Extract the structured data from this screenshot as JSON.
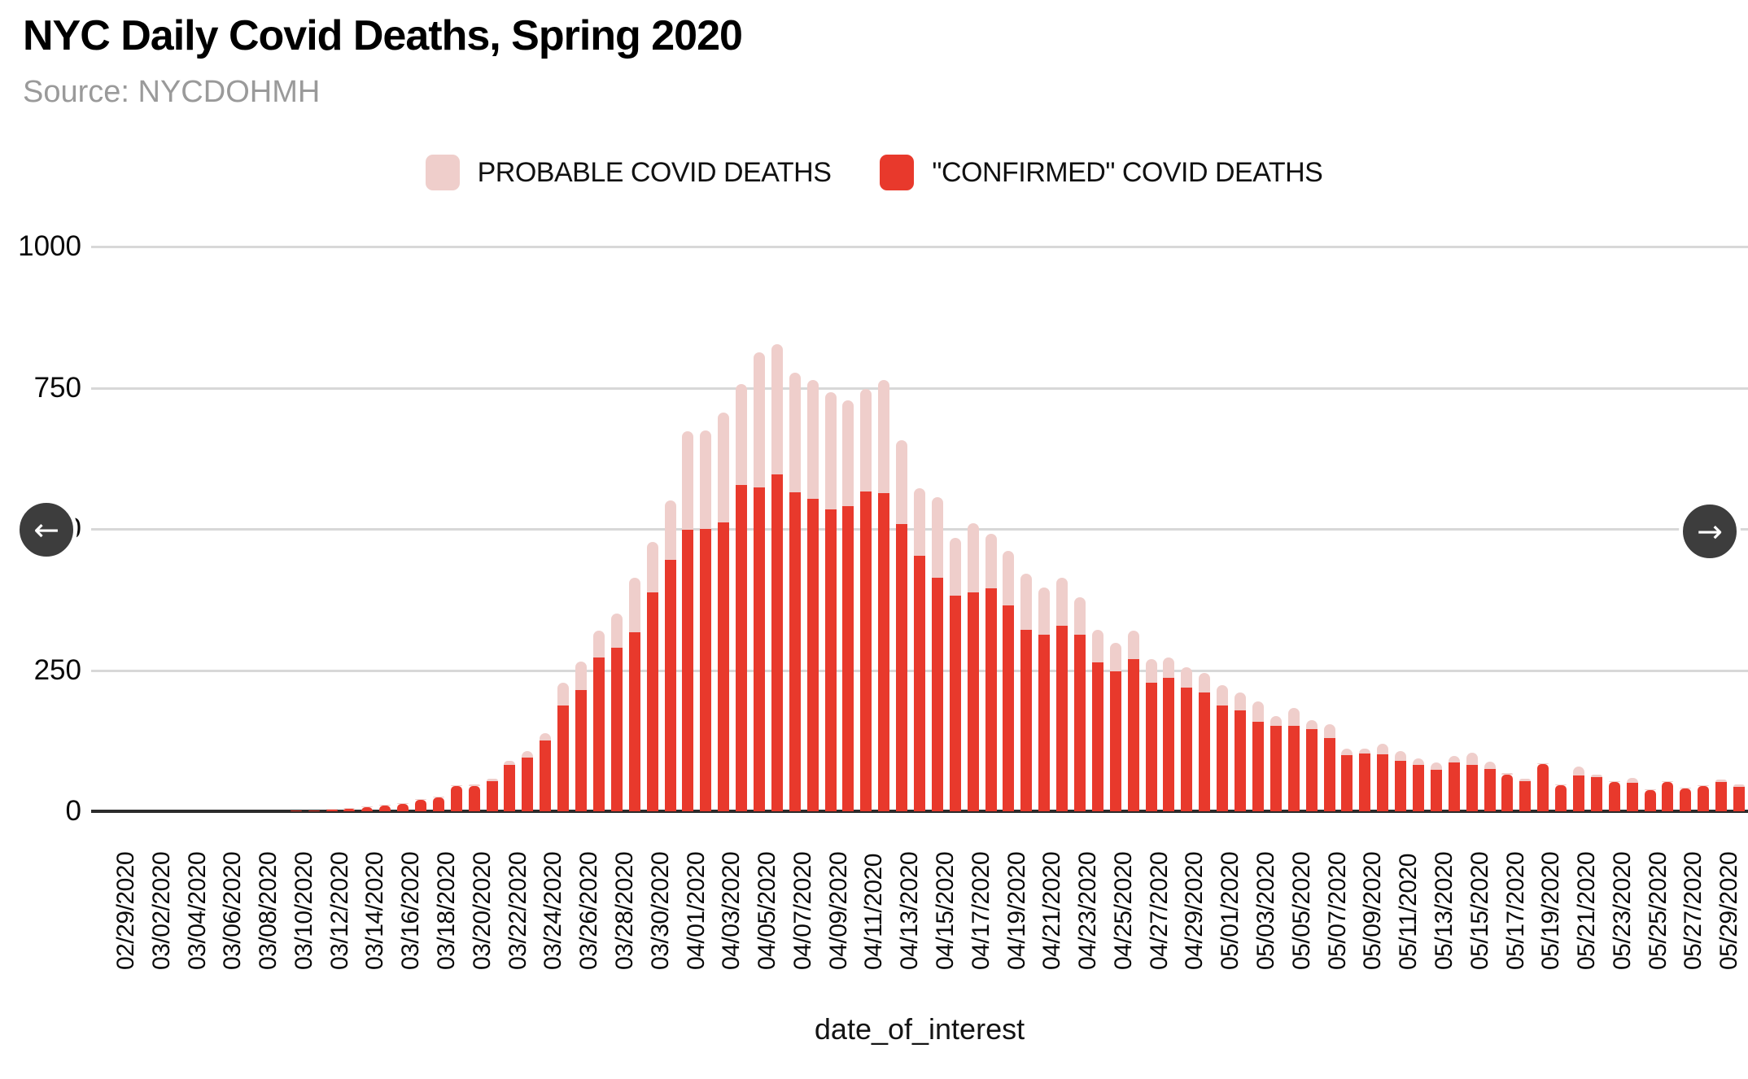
{
  "title": "NYC Daily Covid Deaths, Spring 2020",
  "source": "Source: NYCDOHMH",
  "xaxis_title": "date_of_interest",
  "nav": {
    "left_glyph": "←",
    "right_glyph": "→"
  },
  "colors": {
    "confirmed": "#e8392c",
    "probable": "#efcecb",
    "grid": "#d8d8d8",
    "axis": "#2b2b2b",
    "nav_button": "#3d3d3d"
  },
  "legend": [
    {
      "label": "PROBABLE COVID DEATHS",
      "color": "#efcecb"
    },
    {
      "label": "\"CONFIRMED\" COVID DEATHS",
      "color": "#e8392c"
    }
  ],
  "chart_data": {
    "type": "bar",
    "stacked": true,
    "title": "NYC Daily Covid Deaths, Spring 2020",
    "xlabel": "date_of_interest",
    "ylabel": "",
    "ylim": [
      0,
      1000
    ],
    "yticks": [
      0,
      250,
      500,
      750,
      1000
    ],
    "grid": true,
    "legend_position": "top",
    "tick_label_every": 2,
    "categories": [
      "02/29/2020",
      "03/01/2020",
      "03/02/2020",
      "03/03/2020",
      "03/04/2020",
      "03/05/2020",
      "03/06/2020",
      "03/07/2020",
      "03/08/2020",
      "03/09/2020",
      "03/10/2020",
      "03/11/2020",
      "03/12/2020",
      "03/13/2020",
      "03/14/2020",
      "03/15/2020",
      "03/16/2020",
      "03/17/2020",
      "03/18/2020",
      "03/19/2020",
      "03/20/2020",
      "03/21/2020",
      "03/22/2020",
      "03/23/2020",
      "03/24/2020",
      "03/25/2020",
      "03/26/2020",
      "03/27/2020",
      "03/28/2020",
      "03/29/2020",
      "03/30/2020",
      "03/31/2020",
      "04/01/2020",
      "04/02/2020",
      "04/03/2020",
      "04/04/2020",
      "04/05/2020",
      "04/06/2020",
      "04/07/2020",
      "04/08/2020",
      "04/09/2020",
      "04/10/2020",
      "04/11/2020",
      "04/12/2020",
      "04/13/2020",
      "04/14/2020",
      "04/15/2020",
      "04/16/2020",
      "04/17/2020",
      "04/18/2020",
      "04/19/2020",
      "04/20/2020",
      "04/21/2020",
      "04/22/2020",
      "04/23/2020",
      "04/24/2020",
      "04/25/2020",
      "04/26/2020",
      "04/27/2020",
      "04/28/2020",
      "04/29/2020",
      "04/30/2020",
      "05/01/2020",
      "05/02/2020",
      "05/03/2020",
      "05/04/2020",
      "05/05/2020",
      "05/06/2020",
      "05/07/2020",
      "05/08/2020",
      "05/09/2020",
      "05/10/2020",
      "05/11/2020",
      "05/12/2020",
      "05/13/2020",
      "05/14/2020",
      "05/15/2020",
      "05/16/2020",
      "05/17/2020",
      "05/18/2020",
      "05/19/2020",
      "05/20/2020",
      "05/21/2020",
      "05/22/2020",
      "05/23/2020",
      "05/24/2020",
      "05/25/2020",
      "05/26/2020",
      "05/27/2020",
      "05/28/2020",
      "05/29/2020",
      "05/30/2020",
      "05/31/2020"
    ],
    "series": [
      {
        "name": "\"CONFIRMED\" COVID DEATHS",
        "color": "#e8392c",
        "values": [
          0,
          0,
          0,
          0,
          0,
          0,
          0,
          0,
          0,
          0,
          0,
          1,
          2,
          3,
          5,
          7,
          10,
          13,
          20,
          25,
          44,
          45,
          53,
          82,
          95,
          125,
          187,
          214,
          272,
          289,
          317,
          387,
          445,
          498,
          500,
          512,
          578,
          573,
          596,
          565,
          554,
          535,
          541,
          566,
          564,
          508,
          453,
          413,
          382,
          387,
          395,
          365,
          321,
          312,
          329,
          313,
          264,
          248,
          270,
          227,
          236,
          219,
          210,
          188,
          178,
          159,
          152,
          152,
          145,
          130,
          100,
          103,
          101,
          89,
          82,
          74,
          87,
          82,
          75,
          65,
          53,
          83,
          46,
          63,
          61,
          52,
          51,
          38,
          52,
          40,
          45,
          52,
          43
        ]
      },
      {
        "name": "PROBABLE COVID DEATHS",
        "color": "#efcecb",
        "values": [
          0,
          0,
          0,
          0,
          0,
          0,
          0,
          0,
          0,
          0,
          0,
          0,
          0,
          1,
          2,
          1,
          1,
          2,
          2,
          2,
          2,
          3,
          4,
          7,
          11,
          13,
          41,
          51,
          48,
          60,
          97,
          89,
          105,
          175,
          174,
          195,
          178,
          239,
          231,
          212,
          210,
          207,
          187,
          181,
          200,
          148,
          120,
          142,
          103,
          123,
          96,
          97,
          99,
          83,
          85,
          66,
          58,
          50,
          50,
          42,
          36,
          36,
          35,
          36,
          31,
          36,
          17,
          31,
          16,
          24,
          11,
          9,
          19,
          17,
          12,
          13,
          12,
          22,
          13,
          3,
          5,
          2,
          2,
          16,
          5,
          2,
          8,
          2,
          2,
          2,
          2,
          4,
          4
        ]
      }
    ]
  }
}
